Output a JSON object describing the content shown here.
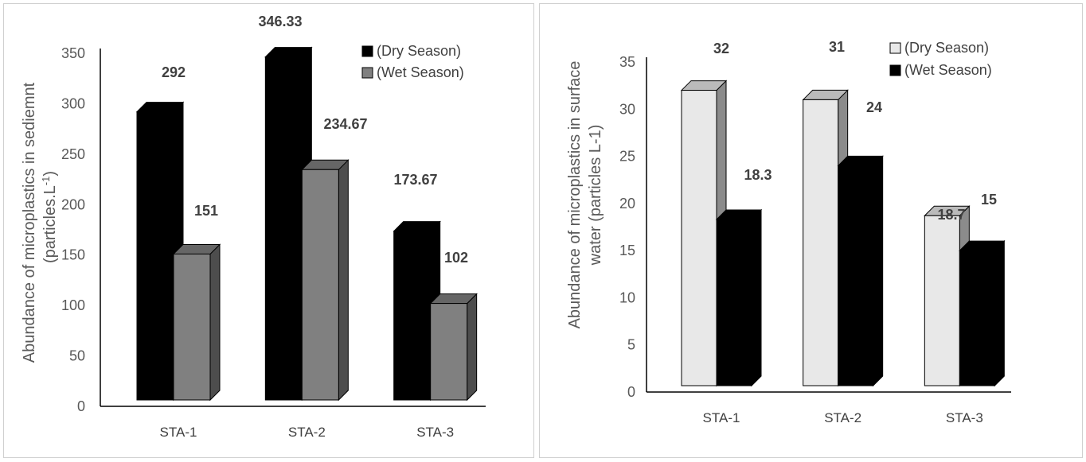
{
  "chart_data": [
    {
      "type": "bar",
      "categories": [
        "STA-1",
        "STA-2",
        "STA-3"
      ],
      "series": [
        {
          "name": "(Dry Season)",
          "values": [
            292,
            346.33,
            173.67
          ],
          "labels": [
            "292",
            "346.33",
            "173.67"
          ],
          "color": "#000000"
        },
        {
          "name": "(Wet Season)",
          "values": [
            151,
            234.67,
            102
          ],
          "labels": [
            "151",
            "234.67",
            "102"
          ],
          "color": "#808080"
        }
      ],
      "ylabel_line1": "Abundance of microplastics in sediemnt",
      "ylabel_line2_prefix": "(particles.L",
      "ylabel_line2_sup": "-1",
      "ylabel_line2_suffix": ")",
      "ylim": [
        0,
        350
      ],
      "ytick_step": 50,
      "grid": false,
      "legend_position": "top-right"
    },
    {
      "type": "bar",
      "categories": [
        "STA-1",
        "STA-2",
        "STA-3"
      ],
      "series": [
        {
          "name": "(Dry Season)",
          "values": [
            32,
            31,
            18.7
          ],
          "labels": [
            "32",
            "31",
            "18.7"
          ],
          "color": "#e8e8e8"
        },
        {
          "name": "(Wet Season)",
          "values": [
            18.3,
            24,
            15
          ],
          "labels": [
            "18.3",
            "24",
            "15"
          ],
          "color": "#000000"
        }
      ],
      "ylabel_line1": "Abundance of microplastics in surface",
      "ylabel_line2": "water (particles L-1)",
      "ylim": [
        0,
        35
      ],
      "ytick_step": 5,
      "grid": false,
      "legend_position": "top-right"
    }
  ]
}
